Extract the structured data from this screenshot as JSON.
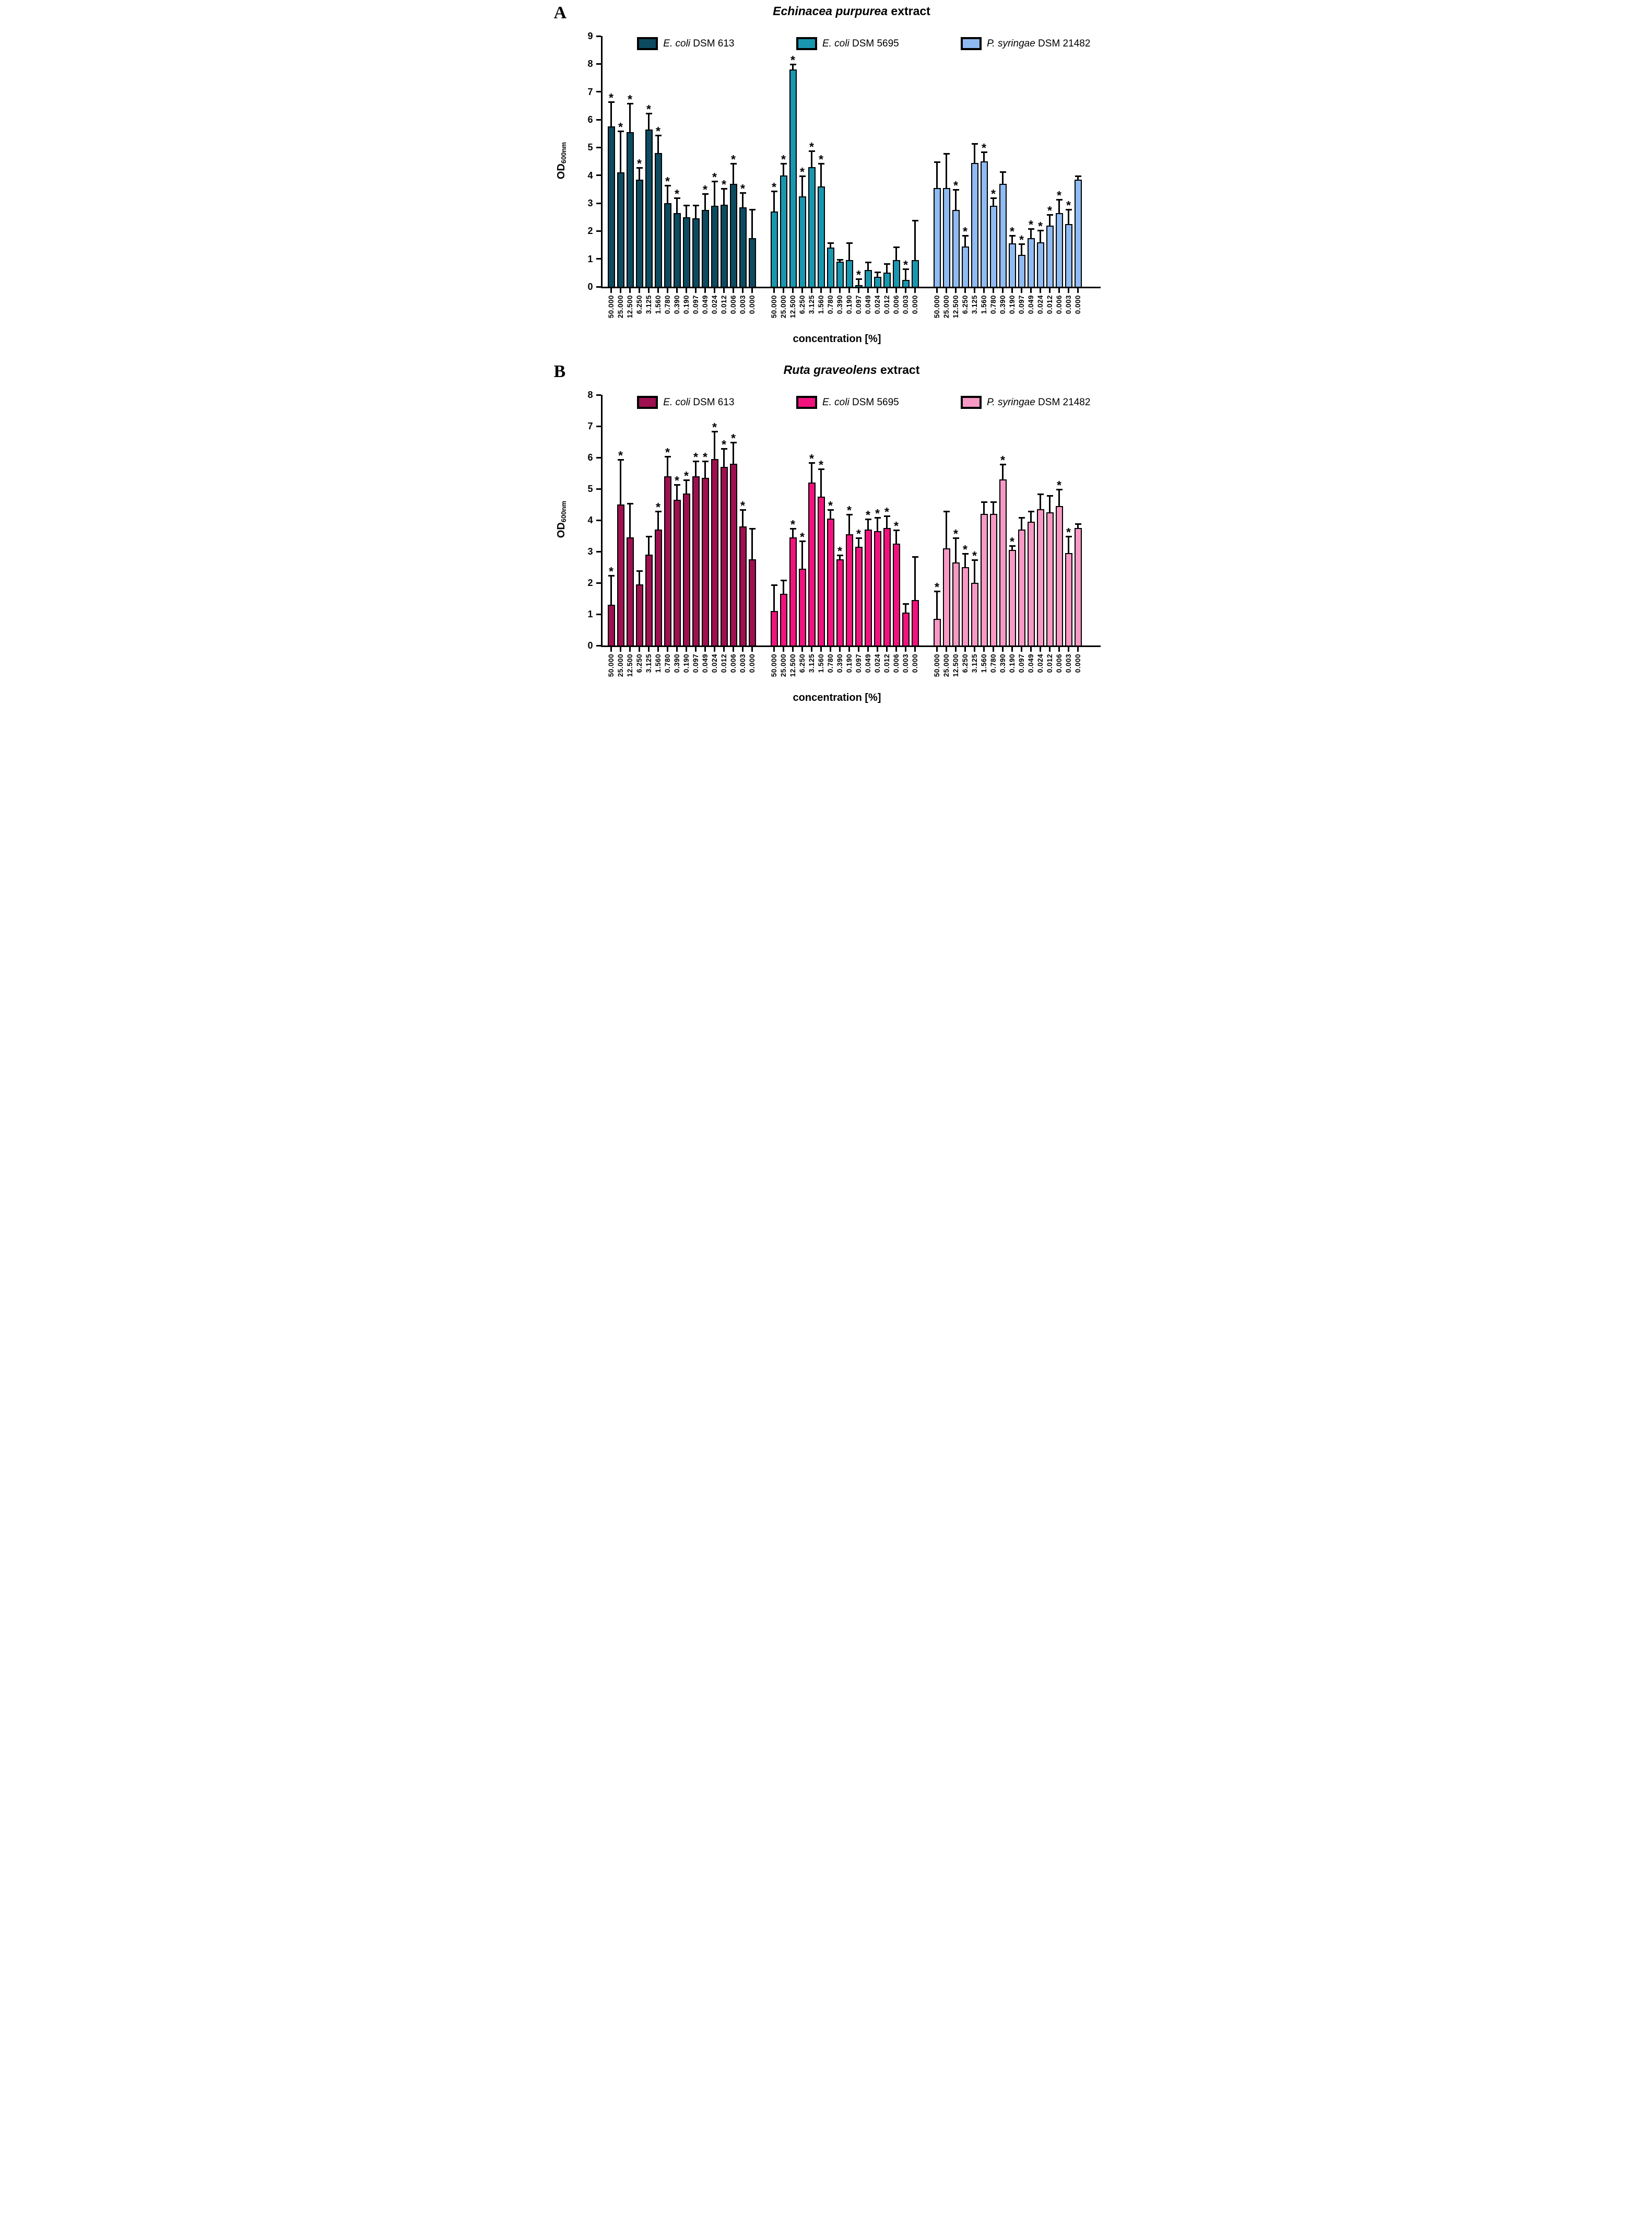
{
  "chart_data": [
    {
      "type": "bar",
      "panel": "A",
      "title": "Echinacea purpurea extract",
      "title_italic_part": "Echinacea purpurea",
      "title_rest_part": " extract",
      "xlabel": "concentration [%]",
      "ylabel": "OD600nm",
      "ylabel_base": "OD",
      "ylabel_sub": "600nm",
      "ylim": [
        0,
        9
      ],
      "ytick_step": 1,
      "grid": false,
      "legend_position": "top",
      "significance_marker": "*",
      "categories": [
        "50.000",
        "25.000",
        "12.500",
        "6.250",
        "3.125",
        "1.560",
        "0.780",
        "0.390",
        "0.190",
        "0.097",
        "0.049",
        "0.024",
        "0.012",
        "0.006",
        "0.003",
        "0.000"
      ],
      "series": [
        {
          "name": "E. coli DSM 613",
          "name_italic": "E. coli",
          "name_rest": " DSM 613",
          "color": "#0D4B60",
          "values": [
            5.75,
            4.1,
            5.55,
            3.85,
            5.65,
            4.8,
            3.0,
            2.65,
            2.5,
            2.45,
            2.75,
            2.9,
            2.95,
            3.7,
            2.85,
            1.75
          ],
          "errors_plus": [
            0.9,
            1.5,
            1.05,
            0.45,
            0.6,
            0.65,
            0.65,
            0.55,
            0.45,
            0.5,
            0.6,
            0.9,
            0.6,
            0.75,
            0.55,
            1.05
          ],
          "significant": [
            1,
            1,
            1,
            1,
            1,
            1,
            1,
            1,
            0,
            0,
            1,
            1,
            1,
            1,
            1,
            0
          ]
        },
        {
          "name": "E. coli DSM 5695",
          "name_italic": "E. coli",
          "name_rest": " DSM 5695",
          "color": "#1997B0",
          "values": [
            2.7,
            4.0,
            7.8,
            3.25,
            4.3,
            3.6,
            1.4,
            0.9,
            0.95,
            0.05,
            0.6,
            0.35,
            0.5,
            0.95,
            0.25,
            0.95
          ],
          "errors_plus": [
            0.75,
            0.45,
            0.2,
            0.75,
            0.6,
            0.85,
            0.2,
            0.1,
            0.65,
            0.25,
            0.3,
            0.2,
            0.35,
            0.5,
            0.4,
            1.45
          ],
          "significant": [
            1,
            1,
            1,
            1,
            1,
            1,
            0,
            0,
            0,
            1,
            0,
            0,
            0,
            0,
            1,
            0
          ]
        },
        {
          "name": "P. syringae DSM 21482",
          "name_italic": "P. syringae",
          "name_rest": " DSM 21482",
          "color": "#8FBBF2",
          "values": [
            3.55,
            3.55,
            2.75,
            1.45,
            4.45,
            4.5,
            2.9,
            3.7,
            1.55,
            1.15,
            1.75,
            1.6,
            2.2,
            2.65,
            2.25,
            3.85
          ],
          "errors_plus": [
            0.95,
            1.25,
            0.75,
            0.4,
            0.7,
            0.35,
            0.3,
            0.45,
            0.3,
            0.4,
            0.35,
            0.45,
            0.4,
            0.5,
            0.55,
            0.15
          ],
          "significant": [
            0,
            0,
            1,
            1,
            0,
            1,
            1,
            0,
            1,
            1,
            1,
            1,
            1,
            1,
            1,
            0
          ]
        }
      ]
    },
    {
      "type": "bar",
      "panel": "B",
      "title": "Ruta graveolens extract",
      "title_italic_part": "Ruta graveolens",
      "title_rest_part": " extract",
      "xlabel": "concentration [%]",
      "ylabel": "OD600nm",
      "ylabel_base": "OD",
      "ylabel_sub": "600nm",
      "ylim": [
        0,
        8
      ],
      "ytick_step": 1,
      "grid": false,
      "legend_position": "top",
      "significance_marker": "*",
      "categories": [
        "50.000",
        "25.000",
        "12.500",
        "6.250",
        "3.125",
        "1.560",
        "0.780",
        "0.390",
        "0.190",
        "0.097",
        "0.049",
        "0.024",
        "0.012",
        "0.006",
        "0.003",
        "0.000"
      ],
      "series": [
        {
          "name": "E. coli DSM 613",
          "name_italic": "E. coli",
          "name_rest": " DSM 613",
          "color": "#9E1050",
          "values": [
            1.3,
            4.5,
            3.45,
            1.95,
            2.9,
            3.7,
            5.4,
            4.65,
            4.85,
            5.4,
            5.35,
            5.95,
            5.7,
            5.8,
            3.8,
            2.75
          ],
          "errors_plus": [
            0.95,
            1.45,
            1.1,
            0.45,
            0.6,
            0.6,
            0.65,
            0.5,
            0.45,
            0.5,
            0.55,
            0.9,
            0.6,
            0.7,
            0.55,
            1.0
          ],
          "significant": [
            1,
            1,
            0,
            0,
            0,
            1,
            1,
            1,
            1,
            1,
            1,
            1,
            1,
            1,
            1,
            0
          ]
        },
        {
          "name": "E. coli DSM 5695",
          "name_italic": "E. coli",
          "name_rest": " DSM 5695",
          "color": "#F2127E",
          "values": [
            1.1,
            1.65,
            3.45,
            2.45,
            5.2,
            4.75,
            4.05,
            2.75,
            3.55,
            3.15,
            3.7,
            3.65,
            3.75,
            3.25,
            1.05,
            1.45
          ],
          "errors_plus": [
            0.85,
            0.45,
            0.3,
            0.9,
            0.65,
            0.9,
            0.3,
            0.15,
            0.65,
            0.3,
            0.35,
            0.45,
            0.4,
            0.45,
            0.3,
            1.4
          ],
          "significant": [
            0,
            0,
            1,
            1,
            1,
            1,
            1,
            1,
            1,
            1,
            1,
            1,
            1,
            1,
            0,
            0
          ]
        },
        {
          "name": "P. syringae DSM 21482",
          "name_italic": "P. syringae",
          "name_rest": " DSM 21482",
          "color": "#F799C4",
          "values": [
            0.85,
            3.1,
            2.65,
            2.5,
            2.0,
            4.2,
            4.2,
            5.3,
            3.05,
            3.7,
            3.95,
            4.35,
            4.25,
            4.45,
            2.95,
            3.75
          ],
          "errors_plus": [
            0.9,
            1.2,
            0.8,
            0.45,
            0.75,
            0.4,
            0.4,
            0.5,
            0.15,
            0.4,
            0.35,
            0.5,
            0.55,
            0.55,
            0.55,
            0.15
          ],
          "significant": [
            1,
            0,
            1,
            1,
            1,
            0,
            0,
            1,
            1,
            0,
            0,
            0,
            0,
            1,
            1,
            0
          ]
        }
      ]
    }
  ]
}
